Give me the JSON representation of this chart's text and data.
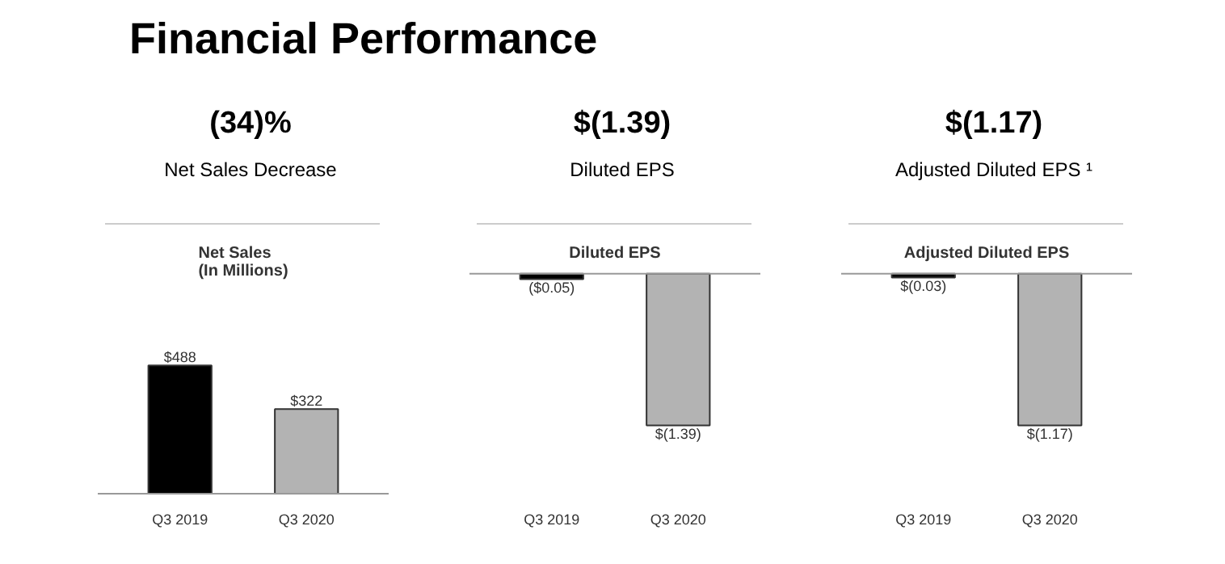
{
  "chart_data": [
    {
      "type": "other",
      "title": "Financial Performance"
    },
    {
      "type": "bar",
      "title": "Net Sales\n(In Millions)",
      "annotations": [
        "(34)%",
        "Net Sales Decrease"
      ],
      "categories": [
        "Q3 2019",
        "Q3 2020"
      ],
      "values": [
        488,
        322
      ],
      "colors": [
        "#000000",
        "#b3b3b3"
      ],
      "value_labels": [
        "$488",
        "$322"
      ]
    },
    {
      "type": "bar",
      "title": "Diluted EPS",
      "annotations": [
        "$(1.39)",
        "Diluted EPS"
      ],
      "categories": [
        "Q3 2019",
        "Q3 2020"
      ],
      "values": [
        -0.05,
        -1.39
      ],
      "colors": [
        "#000000",
        "#b3b3b3"
      ],
      "value_labels": [
        "($0.05)",
        "$(1.39)"
      ]
    },
    {
      "type": "bar",
      "title": "Adjusted Diluted EPS",
      "annotations": [
        "$(1.17)",
        "Adjusted Diluted EPS ¹"
      ],
      "categories": [
        "Q3 2019",
        "Q3 2020"
      ],
      "values": [
        -0.03,
        -1.17
      ],
      "colors": [
        "#000000",
        "#b3b3b3"
      ],
      "value_labels": [
        "$(0.03)",
        "$(1.17)"
      ]
    }
  ]
}
